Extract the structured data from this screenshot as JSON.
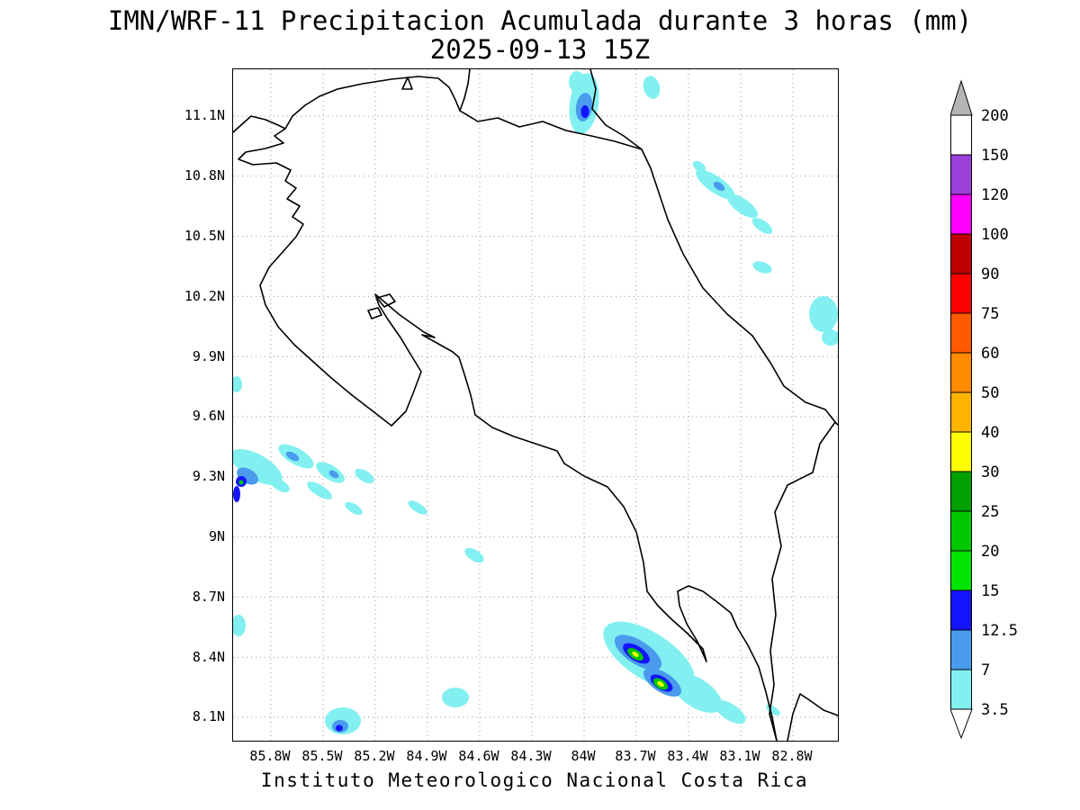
{
  "title": {
    "line1": "IMN/WRF-11 Precipitacion Acumulada durante 3 horas (mm)",
    "line2": "2025-09-13 15Z"
  },
  "footer": "Instituto Meteorologico Nacional Costa Rica",
  "map": {
    "lat_ticks": [
      "11.1N",
      "10.8N",
      "10.5N",
      "10.2N",
      "9.9N",
      "9.6N",
      "9.3N",
      "9N",
      "8.7N",
      "8.4N",
      "8.1N"
    ],
    "lon_ticks": [
      "85.8W",
      "85.5W",
      "85.2W",
      "84.9W",
      "84.6W",
      "84.3W",
      "84W",
      "83.7W",
      "83.4W",
      "83.1W",
      "82.8W"
    ]
  },
  "colorbar": {
    "units": "mm",
    "levels": [
      "200",
      "150",
      "120",
      "100",
      "90",
      "75",
      "60",
      "50",
      "40",
      "30",
      "25",
      "20",
      "15",
      "12.5",
      "7",
      "3.5"
    ],
    "segment_colors": [
      "#FFFFFF",
      "#9B40D8",
      "#FF00FF",
      "#BE0000",
      "#FF0000",
      "#FF5A00",
      "#FF8C00",
      "#FFB400",
      "#FFFF00",
      "#00A000",
      "#00C800",
      "#00E400",
      "#1414FF",
      "#4A9BEB",
      "#82F0F0"
    ],
    "above_color": "#B4B4B4",
    "below_color": "#FFFFFF"
  },
  "precip_palette": {
    "light": "#82F0F0",
    "moderate": "#4A9BEB",
    "heavy": "#1414FF",
    "very_heavy": "#00C800",
    "intense": "#FFFF00"
  }
}
